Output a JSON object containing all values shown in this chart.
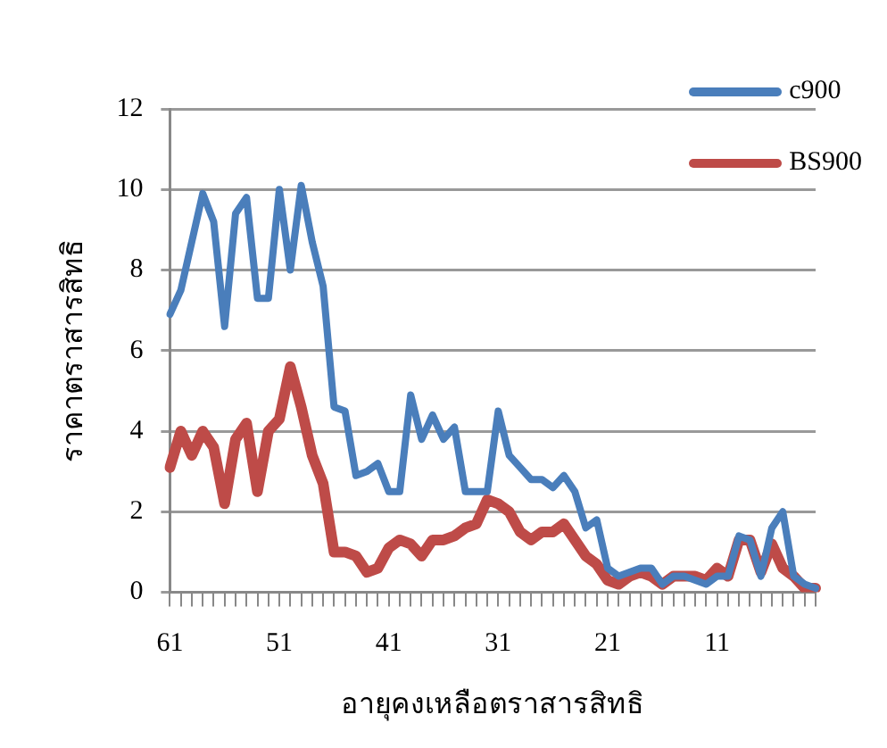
{
  "chart_data": {
    "type": "line",
    "xlabel": "อายุคงเหลือตราสารสิทธิ",
    "ylabel": "ราคาตราสารสิทธิ",
    "categories": [
      "61",
      null,
      null,
      null,
      null,
      null,
      null,
      null,
      null,
      null,
      "51",
      null,
      null,
      null,
      null,
      null,
      null,
      null,
      null,
      null,
      "41",
      null,
      null,
      null,
      null,
      null,
      null,
      null,
      null,
      null,
      "31",
      null,
      null,
      null,
      null,
      null,
      null,
      null,
      null,
      null,
      "21",
      null,
      null,
      null,
      null,
      null,
      null,
      null,
      null,
      null,
      "11",
      null,
      null,
      null,
      null,
      null,
      null,
      null,
      null,
      null
    ],
    "series": [
      {
        "name": "c900",
        "color": "#4a7ebb",
        "values": [
          6.9,
          7.5,
          8.7,
          9.9,
          9.2,
          6.6,
          9.4,
          9.8,
          7.3,
          7.3,
          10.0,
          8.0,
          10.1,
          8.7,
          7.6,
          4.6,
          4.5,
          2.9,
          3.0,
          3.2,
          2.5,
          2.5,
          4.9,
          3.8,
          4.4,
          3.8,
          4.1,
          2.5,
          2.5,
          2.5,
          4.5,
          3.4,
          3.1,
          2.8,
          2.8,
          2.6,
          2.9,
          2.5,
          1.6,
          1.8,
          0.6,
          0.4,
          0.5,
          0.6,
          0.6,
          0.2,
          0.4,
          0.4,
          0.3,
          0.2,
          0.4,
          0.4,
          1.4,
          1.3,
          0.4,
          1.6,
          2.0,
          0.4,
          0.2,
          0.1
        ]
      },
      {
        "name": "BS900",
        "color": "#be4b48",
        "values": [
          3.1,
          4.0,
          3.4,
          4.0,
          3.6,
          2.2,
          3.8,
          4.2,
          2.5,
          4.0,
          4.3,
          5.6,
          4.6,
          3.4,
          2.7,
          1.0,
          1.0,
          0.9,
          0.5,
          0.6,
          1.1,
          1.3,
          1.2,
          0.9,
          1.3,
          1.3,
          1.4,
          1.6,
          1.7,
          2.3,
          2.2,
          2.0,
          1.5,
          1.3,
          1.5,
          1.5,
          1.7,
          1.3,
          0.9,
          0.7,
          0.3,
          0.2,
          0.4,
          0.5,
          0.4,
          0.2,
          0.4,
          0.4,
          0.4,
          0.3,
          0.6,
          0.4,
          1.3,
          1.3,
          0.5,
          1.2,
          0.6,
          0.4,
          0.1,
          0.1
        ]
      }
    ],
    "ylim": [
      0,
      12
    ],
    "yticks": [
      0,
      2,
      4,
      6,
      8,
      10,
      12
    ],
    "grid": "y",
    "legend": "top right",
    "marker": "none",
    "line_style": "solid"
  }
}
